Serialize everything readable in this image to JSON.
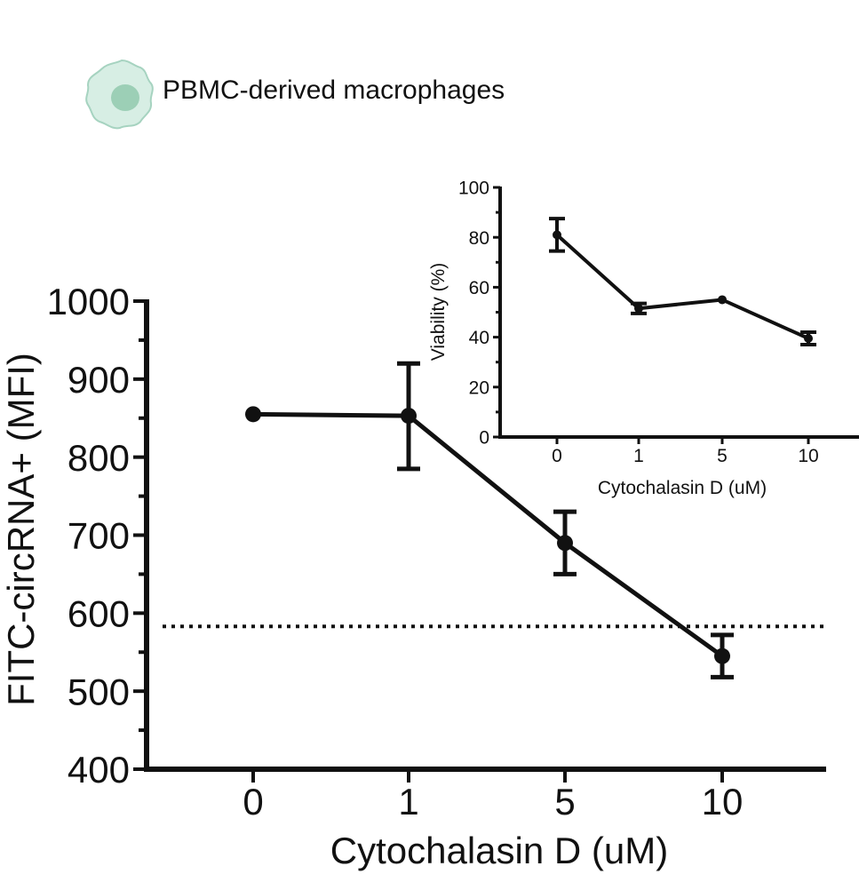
{
  "header": {
    "cell_label": "PBMC-derived macrophages",
    "icon": "macrophage-cell-icon",
    "icon_colors": {
      "outer": "#d7eee4",
      "outline": "#a6d3c0",
      "nucleus": "#9ccfb6"
    }
  },
  "chart_data": [
    {
      "type": "line",
      "title": "",
      "xlabel": "Cytochalasin D (uM)",
      "ylabel": "FITC-circRNA+ (MFI)",
      "categories": [
        "0",
        "1",
        "5",
        "10"
      ],
      "ylim": [
        400,
        1000
      ],
      "yticks": [
        "400",
        "500",
        "600",
        "700",
        "800",
        "900",
        "1000"
      ],
      "minor_tick_step": 50,
      "series": [
        {
          "values": [
            855,
            853,
            690,
            545
          ],
          "error_low": [
            855,
            785,
            650,
            518
          ],
          "error_high": [
            855,
            920,
            730,
            572
          ],
          "color": "#111111"
        }
      ],
      "reference_line": {
        "y": 583,
        "style": "dotted"
      },
      "grid": false,
      "legend": "none"
    },
    {
      "type": "line",
      "title": "",
      "xlabel": "Cytochalasin D (uM)",
      "ylabel": "Viability (%)",
      "categories": [
        "0",
        "1",
        "5",
        "10"
      ],
      "ylim": [
        0,
        100
      ],
      "yticks": [
        "0",
        "20",
        "40",
        "60",
        "80",
        "100"
      ],
      "minor_tick_step": 10,
      "series": [
        {
          "values": [
            81,
            51.5,
            55,
            39.5
          ],
          "error_low": [
            74.5,
            49.5,
            55,
            37
          ],
          "error_high": [
            87.5,
            53.5,
            55,
            42
          ],
          "color": "#111111"
        }
      ],
      "grid": false,
      "legend": "none"
    }
  ]
}
